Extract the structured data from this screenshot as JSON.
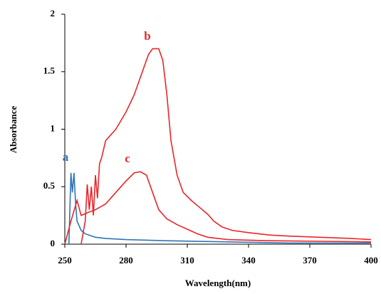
{
  "chart_data": {
    "type": "line",
    "x_label": "Wavelength(nm)",
    "y_label": "Absorbance",
    "xlim": [
      250,
      400
    ],
    "xticks": [
      250,
      280,
      310,
      340,
      370,
      400
    ],
    "ylim": [
      0,
      2
    ],
    "yticks": [
      0,
      0.5,
      1,
      1.5,
      2
    ],
    "series": [
      {
        "name": "a",
        "color": "#2e75b6",
        "x": [
          252,
          253,
          253.7,
          254.5,
          255.3,
          256,
          258,
          260,
          265,
          270,
          280,
          300,
          330,
          360,
          400
        ],
        "values": [
          0,
          0.62,
          0.45,
          0.62,
          0.35,
          0.2,
          0.12,
          0.09,
          0.06,
          0.05,
          0.04,
          0.03,
          0.02,
          0.01,
          0.01
        ]
      },
      {
        "name": "b",
        "color": "#e8262a",
        "x": [
          258,
          260,
          261,
          262,
          263,
          264,
          265,
          266,
          267,
          268,
          270,
          275,
          280,
          284,
          288,
          291,
          293,
          296,
          298,
          300,
          302,
          305,
          308,
          312,
          316,
          320,
          323,
          327,
          332,
          340,
          350,
          360,
          375,
          390,
          400
        ],
        "values": [
          0,
          0.2,
          0.52,
          0.3,
          0.5,
          0.25,
          0.6,
          0.4,
          0.7,
          0.75,
          0.9,
          1.0,
          1.15,
          1.3,
          1.5,
          1.65,
          1.7,
          1.7,
          1.6,
          1.3,
          0.9,
          0.6,
          0.45,
          0.38,
          0.32,
          0.26,
          0.2,
          0.15,
          0.12,
          0.1,
          0.08,
          0.07,
          0.06,
          0.05,
          0.04
        ]
      },
      {
        "name": "c",
        "color": "#e8262a",
        "x": [
          250,
          253,
          256,
          258,
          262,
          265,
          270,
          275,
          280,
          284,
          287,
          290,
          293,
          296,
          300,
          305,
          310,
          315,
          320,
          330,
          350,
          400
        ],
        "values": [
          0,
          0.2,
          0.38,
          0.25,
          0.28,
          0.3,
          0.35,
          0.45,
          0.55,
          0.62,
          0.63,
          0.6,
          0.45,
          0.3,
          0.22,
          0.17,
          0.13,
          0.09,
          0.06,
          0.04,
          0.03,
          0.02
        ]
      }
    ]
  }
}
